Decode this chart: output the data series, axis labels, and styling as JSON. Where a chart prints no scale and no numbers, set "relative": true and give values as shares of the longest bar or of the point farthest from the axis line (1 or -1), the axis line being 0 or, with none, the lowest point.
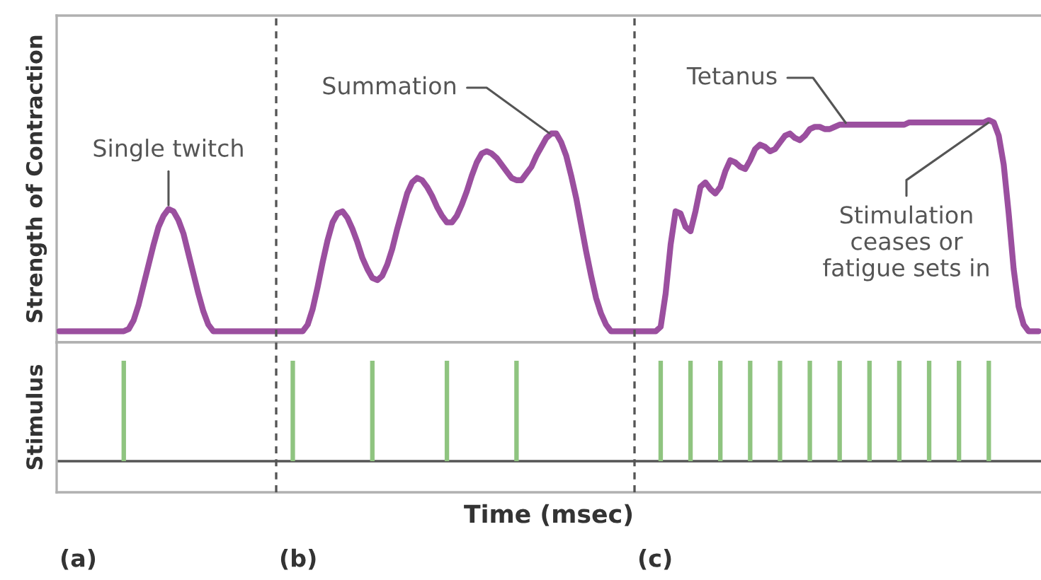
{
  "chart_data": [
    {
      "type": "line",
      "ylabel": "Strength of Contraction",
      "relative": true,
      "categories": [
        null,
        null,
        null,
        null,
        null,
        null,
        null,
        null,
        null,
        null,
        null,
        null,
        null,
        null,
        null,
        null,
        null,
        null,
        null,
        null,
        null,
        null,
        null,
        null,
        null,
        null,
        null,
        null,
        null,
        null,
        null,
        null,
        null,
        null,
        null,
        null,
        null,
        null,
        null,
        null,
        null,
        null,
        null,
        null,
        null,
        null,
        null,
        null,
        null,
        null,
        null,
        null,
        null,
        null,
        null,
        null,
        null,
        null,
        null,
        null,
        null,
        null,
        null,
        null,
        null,
        null,
        null,
        null,
        null,
        null,
        null,
        null,
        null,
        null,
        null,
        null,
        null,
        null,
        null,
        null,
        null,
        null,
        null,
        null,
        null,
        null,
        null,
        null,
        null,
        null,
        null,
        null,
        null,
        null,
        null,
        null,
        null,
        null,
        null,
        null,
        null,
        null,
        null,
        null,
        null,
        null,
        null,
        null,
        null,
        null,
        null,
        null,
        null,
        null,
        null,
        null,
        null,
        null,
        null,
        null,
        null,
        null,
        null,
        null,
        null,
        null,
        null,
        null,
        null,
        null,
        null,
        null,
        null,
        null,
        null,
        null,
        null,
        null,
        null,
        null,
        null,
        null,
        null,
        null,
        null,
        null,
        null,
        null,
        null,
        null,
        null,
        null,
        null,
        null,
        null,
        null,
        null,
        null,
        null,
        null,
        null,
        null,
        null,
        null,
        null,
        null,
        null,
        null,
        null,
        null,
        null,
        null,
        null,
        null,
        null,
        null,
        null,
        null,
        null,
        null,
        null,
        null,
        null,
        null,
        null,
        null,
        null,
        null,
        null,
        null,
        null,
        null,
        null,
        null,
        null,
        null,
        null,
        null
      ],
      "series": [
        {
          "color": "#9b4f9f",
          "values": [
            0.05,
            0.05,
            0.05,
            0.05,
            0.05,
            0.05,
            0.05,
            0.05,
            0.05,
            0.05,
            0.05,
            0.05,
            0.05,
            0.05,
            0.06,
            0.1,
            0.17,
            0.26,
            0.35,
            0.44,
            0.52,
            0.57,
            0.6,
            0.59,
            0.55,
            0.49,
            0.4,
            0.31,
            0.22,
            0.14,
            0.08,
            0.05,
            0.05,
            0.05,
            0.05,
            0.05,
            0.05,
            0.05,
            0.05,
            0.05,
            0.05,
            0.05,
            0.05,
            0.05,
            0.05,
            0.05,
            0.05,
            0.05,
            0.05,
            0.05,
            0.08,
            0.15,
            0.25,
            0.36,
            0.46,
            0.54,
            0.58,
            0.59,
            0.56,
            0.51,
            0.45,
            0.38,
            0.33,
            0.29,
            0.28,
            0.3,
            0.35,
            0.42,
            0.51,
            0.59,
            0.67,
            0.72,
            0.74,
            0.73,
            0.7,
            0.66,
            0.61,
            0.57,
            0.54,
            0.54,
            0.57,
            0.62,
            0.68,
            0.75,
            0.81,
            0.85,
            0.86,
            0.85,
            0.83,
            0.8,
            0.77,
            0.74,
            0.73,
            0.73,
            0.76,
            0.79,
            0.84,
            0.88,
            0.92,
            0.94,
            0.94,
            0.9,
            0.84,
            0.75,
            0.65,
            0.53,
            0.41,
            0.3,
            0.2,
            0.13,
            0.08,
            0.05,
            0.05,
            0.05,
            0.05,
            0.05,
            0.05,
            0.05,
            0.05,
            0.05,
            0.05,
            0.07,
            0.22,
            0.44,
            0.59,
            0.58,
            0.52,
            0.5,
            0.59,
            0.7,
            0.72,
            0.69,
            0.67,
            0.7,
            0.77,
            0.82,
            0.81,
            0.79,
            0.78,
            0.82,
            0.87,
            0.89,
            0.88,
            0.86,
            0.87,
            0.9,
            0.93,
            0.94,
            0.92,
            0.91,
            0.93,
            0.96,
            0.97,
            0.97,
            0.96,
            0.96,
            0.97,
            0.98,
            0.98,
            0.98,
            0.98,
            0.98,
            0.98,
            0.98,
            0.98,
            0.98,
            0.98,
            0.98,
            0.98,
            0.98,
            0.98,
            0.99,
            0.99,
            0.99,
            0.99,
            0.99,
            0.99,
            0.99,
            0.99,
            0.99,
            0.99,
            0.99,
            0.99,
            0.99,
            0.99,
            0.99,
            0.99,
            1.0,
            0.99,
            0.93,
            0.8,
            0.58,
            0.33,
            0.16,
            0.08,
            0.05,
            0.05,
            0.05
          ]
        }
      ],
      "annotations": [
        {
          "text": "Single twitch",
          "y": 0.6
        },
        "Summation",
        "Tetanus",
        "Stimulation\nceases or\nfatigue sets in"
      ]
    },
    {
      "type": "bar",
      "ylabel": "Stimulus",
      "xlabel": "Time (msec)",
      "relative": true,
      "categories": [
        null,
        null,
        null,
        null,
        null,
        null,
        null,
        null,
        null,
        null,
        null,
        null,
        null,
        null,
        null,
        null,
        null,
        null,
        null,
        null,
        null,
        null,
        null,
        null,
        null,
        null,
        null,
        null,
        null,
        null,
        null,
        null,
        null,
        null,
        null,
        null,
        null,
        null,
        null,
        null,
        null,
        null,
        null,
        null,
        null,
        null,
        null,
        null,
        null,
        null,
        null,
        null,
        null,
        null,
        null,
        null,
        null,
        null,
        null,
        null,
        null,
        null,
        null,
        null,
        null,
        null,
        null,
        null,
        null,
        null,
        null,
        null,
        null,
        null,
        null,
        null,
        null,
        null,
        null,
        null,
        null,
        null,
        null,
        null,
        null,
        null,
        null,
        null,
        null,
        null,
        null,
        null,
        null,
        null,
        null,
        null,
        null,
        null,
        null,
        null,
        null,
        null,
        null,
        null,
        null,
        null,
        null,
        null,
        null,
        null,
        null,
        null,
        null,
        null,
        null,
        null,
        null,
        null,
        null,
        null,
        null,
        null,
        null,
        null,
        null,
        null,
        null,
        null,
        null,
        null,
        null,
        null,
        null,
        null,
        null,
        null,
        null,
        null,
        null,
        null,
        null,
        null,
        null,
        null,
        null,
        null,
        null,
        null,
        null,
        null,
        null,
        null,
        null,
        null,
        null,
        null,
        null,
        null,
        null,
        null,
        null,
        null,
        null,
        null,
        null,
        null,
        null,
        null,
        null,
        null,
        null,
        null,
        null,
        null,
        null,
        null,
        null,
        null,
        null,
        null,
        null,
        null,
        null,
        null,
        null,
        null,
        null,
        null,
        null,
        null,
        null,
        null,
        null,
        null,
        null,
        null,
        null,
        null
      ],
      "series": [
        {
          "color": "#8fc480",
          "values": [
            null,
            null,
            null,
            null,
            null,
            null,
            null,
            null,
            null,
            null,
            null,
            null,
            null,
            1,
            null,
            null,
            null,
            null,
            null,
            null,
            null,
            null,
            null,
            null,
            null,
            null,
            null,
            null,
            null,
            null,
            null,
            null,
            null,
            null,
            null,
            null,
            null,
            null,
            null,
            null,
            null,
            null,
            null,
            null,
            null,
            null,
            null,
            1,
            null,
            null,
            null,
            null,
            null,
            null,
            null,
            null,
            null,
            null,
            null,
            null,
            null,
            null,
            null,
            1,
            null,
            null,
            null,
            null,
            null,
            null,
            null,
            null,
            null,
            null,
            null,
            null,
            null,
            null,
            1,
            null,
            null,
            null,
            null,
            null,
            null,
            null,
            null,
            null,
            null,
            null,
            null,
            null,
            1,
            null,
            null,
            null,
            null,
            null,
            null,
            null,
            null,
            null,
            null,
            null,
            null,
            null,
            null,
            null,
            null,
            null,
            null,
            null,
            null,
            null,
            null,
            null,
            null,
            null,
            null,
            null,
            null,
            1,
            null,
            null,
            null,
            null,
            null,
            1,
            null,
            null,
            null,
            null,
            null,
            1,
            null,
            null,
            null,
            null,
            null,
            1,
            null,
            null,
            null,
            null,
            null,
            1,
            null,
            null,
            null,
            null,
            null,
            1,
            null,
            null,
            null,
            null,
            null,
            1,
            null,
            null,
            null,
            null,
            null,
            1,
            null,
            null,
            null,
            null,
            null,
            1,
            null,
            null,
            null,
            null,
            null,
            1,
            null,
            null,
            null,
            null,
            null,
            1,
            null,
            null,
            null,
            null,
            null,
            1,
            null,
            null,
            null,
            null,
            null,
            null,
            null,
            null,
            null,
            null
          ]
        }
      ],
      "annotations": [
        "(a)",
        "(b)",
        "(c)"
      ]
    }
  ]
}
